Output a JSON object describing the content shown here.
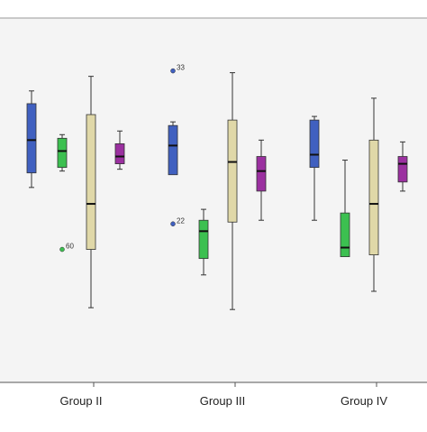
{
  "chart_data": {
    "type": "boxplot",
    "categories": [
      "Group II",
      "Group III",
      "Group IV"
    ],
    "ylim": [
      0,
      100
    ],
    "grid": false,
    "legend": "none",
    "series": [
      {
        "color": "#4060c0",
        "boxes": [
          {
            "min": 53.5,
            "q1": 57.5,
            "median": 66.5,
            "q3": 76.5,
            "max": 80
          },
          {
            "min": null,
            "q1": 57,
            "median": 65,
            "q3": 70.5,
            "max": 71.5
          },
          {
            "min": 44.5,
            "q1": 59,
            "median": 62.5,
            "q3": 72,
            "max": 73
          }
        ]
      },
      {
        "color": "#3cc050",
        "boxes": [
          {
            "min": 58,
            "q1": 59,
            "median": 63.5,
            "q3": 67,
            "max": 68
          },
          {
            "min": 29.5,
            "q1": 34,
            "median": 41.5,
            "q3": 44.5,
            "max": 47.5
          },
          {
            "min": null,
            "q1": 34.5,
            "median": 37,
            "q3": 46.5,
            "max": 61
          }
        ]
      },
      {
        "color": "#e0d8a8",
        "boxes": [
          {
            "min": 20.5,
            "q1": 36.5,
            "median": 49,
            "q3": 73.5,
            "max": 84
          },
          {
            "min": 20,
            "q1": 44,
            "median": 60.5,
            "q3": 72,
            "max": 85
          },
          {
            "min": 25,
            "q1": 35,
            "median": 49,
            "q3": 66.5,
            "max": 78
          }
        ]
      },
      {
        "color": "#9b30a0",
        "boxes": [
          {
            "min": 58.5,
            "q1": 60,
            "median": 62,
            "q3": 65.5,
            "max": 69
          },
          {
            "min": 44.5,
            "q1": 52.5,
            "median": 58,
            "q3": 62,
            "max": 66.5
          },
          {
            "min": 52.5,
            "q1": 55,
            "median": 60,
            "q3": 62,
            "max": 66
          }
        ]
      }
    ],
    "outliers": [
      {
        "category": "Group II",
        "series": 1,
        "value": 36.5,
        "label": "60"
      },
      {
        "category": "Group III",
        "series": 0,
        "value": 85.5,
        "label": "33"
      },
      {
        "category": "Group III",
        "series": 0,
        "value": 43.5,
        "label": "22"
      }
    ]
  }
}
